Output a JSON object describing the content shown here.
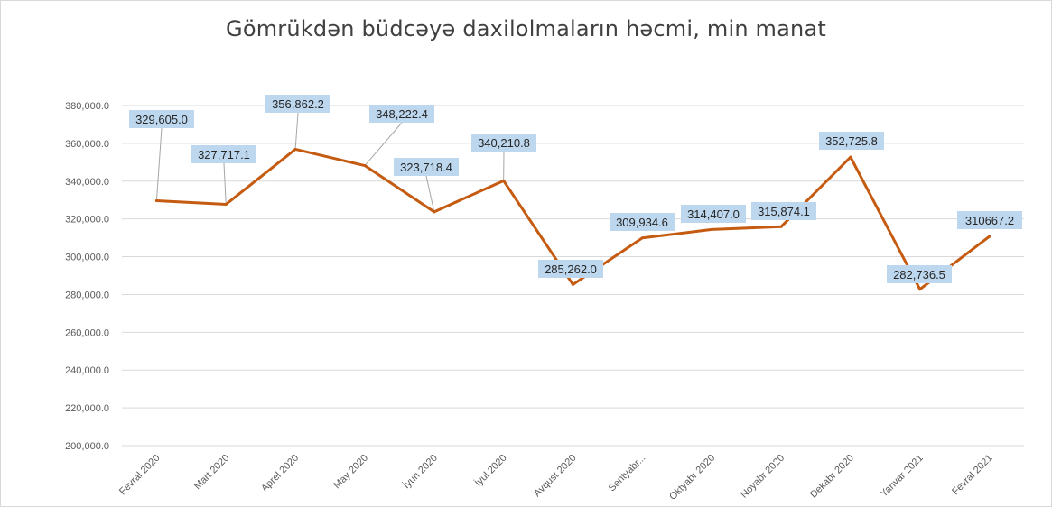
{
  "chart_data": {
    "type": "line",
    "title": "Gömrükdən büdcəyə daxilolmaların həcmi, min manat",
    "categories": [
      "Fevral 2020",
      "Mart 2020",
      "Aprel 2020",
      "May 2020",
      "İyun 2020",
      "İyul 2020",
      "Avqust 2020",
      "Sentyabr...",
      "Oktyabr 2020",
      "Noyabr 2020",
      "Dekabr 2020",
      "Yanvar 2021",
      "Fevral 2021"
    ],
    "series": [
      {
        "values": [
          329605.0,
          327717.1,
          356862.2,
          348222.4,
          323718.4,
          340210.8,
          285262.0,
          309934.6,
          314407.0,
          315874.1,
          352725.8,
          282736.5,
          310667.2
        ],
        "data_labels": [
          "329,605.0",
          "327,717.1",
          "356,862.2",
          "348,222.4",
          "323,718.4",
          "340,210.8",
          "285,262.0",
          "309,934.6",
          "314,407.0",
          "315,874.1",
          "352,725.8",
          "282,736.5",
          "310667.2"
        ],
        "color": "#c55a11"
      }
    ],
    "ylim": [
      200000,
      380000
    ],
    "yticks": [
      200000,
      220000,
      240000,
      260000,
      280000,
      300000,
      320000,
      340000,
      360000,
      380000
    ],
    "ytick_labels": [
      "200,000.0",
      "220,000.0",
      "240,000.0",
      "260,000.0",
      "280,000.0",
      "300,000.0",
      "320,000.0",
      "340,000.0",
      "360,000.0",
      "380,000.0"
    ],
    "xlabel": "",
    "ylabel": "",
    "grid": true,
    "legend": "none",
    "label_box_color": "#bdd7ee",
    "leader_line_color": "#a6a6a6",
    "grid_color": "#d9d9d9"
  }
}
